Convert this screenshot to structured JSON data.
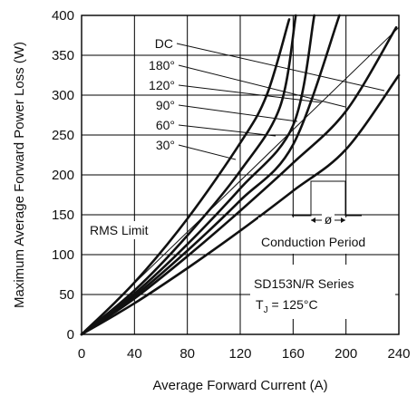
{
  "chart_data": {
    "type": "line",
    "xlabel": "Average Forward Current (A)",
    "ylabel": "Maximum Average Forward Power Loss (W)",
    "xlim": [
      0,
      240
    ],
    "ylim": [
      0,
      400
    ],
    "xticks": [
      "0",
      "40",
      "80",
      "120",
      "160",
      "200",
      "240"
    ],
    "yticks": [
      "0",
      "50",
      "100",
      "150",
      "200",
      "250",
      "300",
      "350",
      "400"
    ],
    "grid": true,
    "series": [
      {
        "name": "DC",
        "x": [
          0,
          40,
          80,
          120,
          160,
          200,
          240
        ],
        "y": [
          0,
          39,
          83,
          130,
          180,
          232,
          325
        ]
      },
      {
        "name": "180°",
        "x": [
          0,
          40,
          80,
          120,
          160,
          200,
          238
        ],
        "y": [
          0,
          45,
          98,
          155,
          215,
          280,
          385
        ]
      },
      {
        "name": "120°",
        "x": [
          0,
          40,
          80,
          120,
          160,
          195
        ],
        "y": [
          0,
          48,
          105,
          168,
          238,
          400
        ]
      },
      {
        "name": "90°",
        "x": [
          0,
          40,
          80,
          120,
          160,
          176
        ],
        "y": [
          0,
          51,
          113,
          183,
          262,
          400
        ]
      },
      {
        "name": "60°",
        "x": [
          0,
          40,
          80,
          120,
          150,
          162
        ],
        "y": [
          0,
          55,
          124,
          205,
          285,
          400
        ]
      },
      {
        "name": "30°",
        "x": [
          0,
          40,
          80,
          120,
          140,
          157
        ],
        "y": [
          0,
          65,
          145,
          240,
          300,
          395
        ]
      }
    ],
    "annotations": {
      "rms_limit": "RMS Limit",
      "conduction": "Conduction Period",
      "phi": "ø",
      "series_title": "SD153N/R Series",
      "tj_prefix": "T",
      "tj_sub": "J",
      "tj_value": "= 125°C"
    }
  }
}
